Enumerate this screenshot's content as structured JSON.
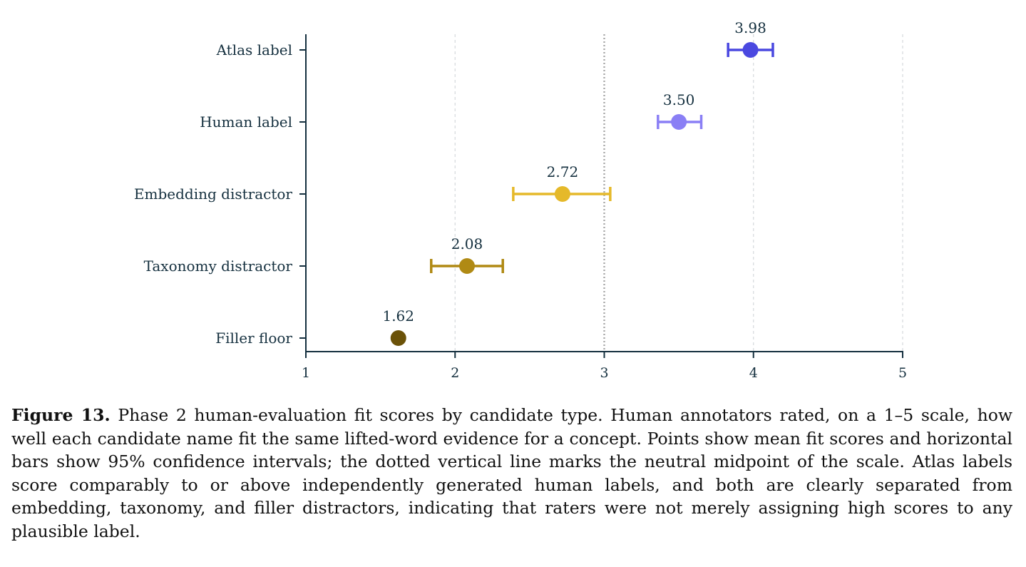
{
  "chart_data": {
    "type": "scatter",
    "orientation": "horizontal",
    "categories": [
      "Atlas label",
      "Human label",
      "Embedding distractor",
      "Taxonomy distractor",
      "Filler floor"
    ],
    "means": [
      3.98,
      3.5,
      2.72,
      2.08,
      1.62
    ],
    "value_labels": [
      "3.98",
      "3.50",
      "2.72",
      "2.08",
      "1.62"
    ],
    "ci_low": [
      3.83,
      3.36,
      2.39,
      1.84,
      null
    ],
    "ci_high": [
      4.13,
      3.65,
      3.04,
      2.32,
      null
    ],
    "colors": [
      "#4a48e0",
      "#8a7ff5",
      "#e5b92a",
      "#b08a14",
      "#6b5208"
    ],
    "xlim": [
      1,
      5
    ],
    "x_ticks": [
      1,
      2,
      3,
      4,
      5
    ],
    "x_tick_labels": [
      "1",
      "2",
      "3",
      "4",
      "5"
    ],
    "reference_line": 3,
    "grid": "vertical dashed",
    "title": "",
    "xlabel": "",
    "ylabel": ""
  },
  "caption": {
    "figure_label": "Figure 13.",
    "text": "Phase 2 human-evaluation fit scores by candidate type. Human annotators rated, on a 1–5 scale, how well each candidate name fit the same lifted-word evidence for a concept. Points show mean fit scores and horizontal bars show 95% confidence intervals; the dotted vertical line marks the neutral midpoint of the scale. Atlas labels score comparably to or above independently generated human labels, and both are clearly separated from embedding, taxonomy, and filler distractors, indicating that raters were not merely assigning high scores to any plausible label."
  }
}
